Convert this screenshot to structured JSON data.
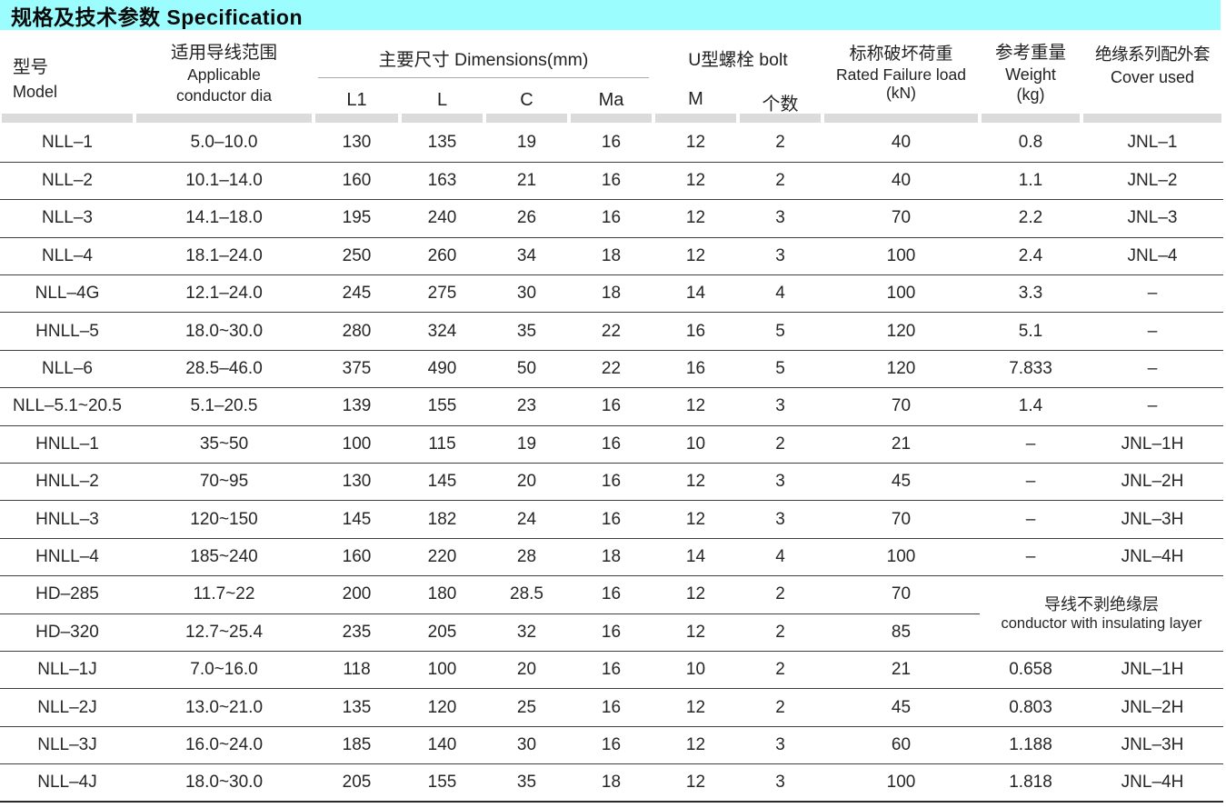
{
  "title_bar": {
    "text": "规格及技术参数 Specification",
    "bg_color": "#9CFDFE"
  },
  "header": {
    "model_zh": "型号",
    "model_en": "Model",
    "conductor_zh": "适用导线范围",
    "conductor_en1": "Applicable",
    "conductor_en2": "conductor dia",
    "dims_group": "主要尺寸 Dimensions(mm)",
    "dims_cols": {
      "l1": "L1",
      "l": "L",
      "c": "C",
      "ma": "Ma"
    },
    "bolt_group": "U型螺栓 bolt",
    "bolt_cols": {
      "m": "M",
      "count": "个数"
    },
    "load_zh": "标称破坏荷重",
    "load_en": "Rated Failure load",
    "load_unit": "(kN)",
    "weight_zh": "参考重量",
    "weight_en": "Weight",
    "weight_unit": "(kg)",
    "cover_zh": "绝缘系列配外套",
    "cover_en": "Cover used"
  },
  "merged_note": {
    "zh": "导线不剥绝缘层",
    "en": "conductor with insulating layer"
  },
  "rows": [
    {
      "model": "NLL–1",
      "conductor": "5.0–10.0",
      "l1": "130",
      "l": "135",
      "c": "19",
      "ma": "16",
      "m": "12",
      "count": "2",
      "load": "40",
      "weight": "0.8",
      "cover": "JNL–1"
    },
    {
      "model": "NLL–2",
      "conductor": "10.1–14.0",
      "l1": "160",
      "l": "163",
      "c": "21",
      "ma": "16",
      "m": "12",
      "count": "2",
      "load": "40",
      "weight": "1.1",
      "cover": "JNL–2"
    },
    {
      "model": "NLL–3",
      "conductor": "14.1–18.0",
      "l1": "195",
      "l": "240",
      "c": "26",
      "ma": "16",
      "m": "12",
      "count": "3",
      "load": "70",
      "weight": "2.2",
      "cover": "JNL–3"
    },
    {
      "model": "NLL–4",
      "conductor": "18.1–24.0",
      "l1": "250",
      "l": "260",
      "c": "34",
      "ma": "18",
      "m": "12",
      "count": "3",
      "load": "100",
      "weight": "2.4",
      "cover": "JNL–4"
    },
    {
      "model": "NLL–4G",
      "conductor": "12.1–24.0",
      "l1": "245",
      "l": "275",
      "c": "30",
      "ma": "18",
      "m": "14",
      "count": "4",
      "load": "100",
      "weight": "3.3",
      "cover": "–"
    },
    {
      "model": "HNLL–5",
      "conductor": "18.0~30.0",
      "l1": "280",
      "l": "324",
      "c": "35",
      "ma": "22",
      "m": "16",
      "count": "5",
      "load": "120",
      "weight": "5.1",
      "cover": "–"
    },
    {
      "model": "NLL–6",
      "conductor": "28.5–46.0",
      "l1": "375",
      "l": "490",
      "c": "50",
      "ma": "22",
      "m": "16",
      "count": "5",
      "load": "120",
      "weight": "7.833",
      "cover": "–"
    },
    {
      "model": "NLL–5.1~20.5",
      "conductor": "5.1–20.5",
      "l1": "139",
      "l": "155",
      "c": "23",
      "ma": "16",
      "m": "12",
      "count": "3",
      "load": "70",
      "weight": "1.4",
      "cover": "–"
    },
    {
      "model": "HNLL–1",
      "conductor": "35~50",
      "l1": "100",
      "l": "115",
      "c": "19",
      "ma": "16",
      "m": "10",
      "count": "2",
      "load": "21",
      "weight": "–",
      "cover": "JNL–1H"
    },
    {
      "model": "HNLL–2",
      "conductor": "70~95",
      "l1": "130",
      "l": "145",
      "c": "20",
      "ma": "16",
      "m": "12",
      "count": "3",
      "load": "45",
      "weight": "–",
      "cover": "JNL–2H"
    },
    {
      "model": "HNLL–3",
      "conductor": "120~150",
      "l1": "145",
      "l": "182",
      "c": "24",
      "ma": "16",
      "m": "12",
      "count": "3",
      "load": "70",
      "weight": "–",
      "cover": "JNL–3H"
    },
    {
      "model": "HNLL–4",
      "conductor": "185~240",
      "l1": "160",
      "l": "220",
      "c": "28",
      "ma": "18",
      "m": "14",
      "count": "4",
      "load": "100",
      "weight": "–",
      "cover": "JNL–4H"
    },
    {
      "model": "HD–285",
      "conductor": "11.7~22",
      "l1": "200",
      "l": "180",
      "c": "28.5",
      "ma": "16",
      "m": "12",
      "count": "2",
      "load": "70",
      "merge": "start"
    },
    {
      "model": "HD–320",
      "conductor": "12.7~25.4",
      "l1": "235",
      "l": "205",
      "c": "32",
      "ma": "16",
      "m": "12",
      "count": "2",
      "load": "85",
      "merge": "cont"
    },
    {
      "model": "NLL–1J",
      "conductor": "7.0~16.0",
      "l1": "118",
      "l": "100",
      "c": "20",
      "ma": "16",
      "m": "10",
      "count": "2",
      "load": "21",
      "weight": "0.658",
      "cover": "JNL–1H"
    },
    {
      "model": "NLL–2J",
      "conductor": "13.0~21.0",
      "l1": "135",
      "l": "120",
      "c": "25",
      "ma": "16",
      "m": "12",
      "count": "2",
      "load": "45",
      "weight": "0.803",
      "cover": "JNL–2H"
    },
    {
      "model": "NLL–3J",
      "conductor": "16.0~24.0",
      "l1": "185",
      "l": "140",
      "c": "30",
      "ma": "16",
      "m": "12",
      "count": "3",
      "load": "60",
      "weight": "1.188",
      "cover": "JNL–3H"
    },
    {
      "model": "NLL–4J",
      "conductor": "18.0~30.0",
      "l1": "205",
      "l": "155",
      "c": "35",
      "ma": "18",
      "m": "12",
      "count": "3",
      "load": "100",
      "weight": "1.818",
      "cover": "JNL–4H"
    }
  ]
}
